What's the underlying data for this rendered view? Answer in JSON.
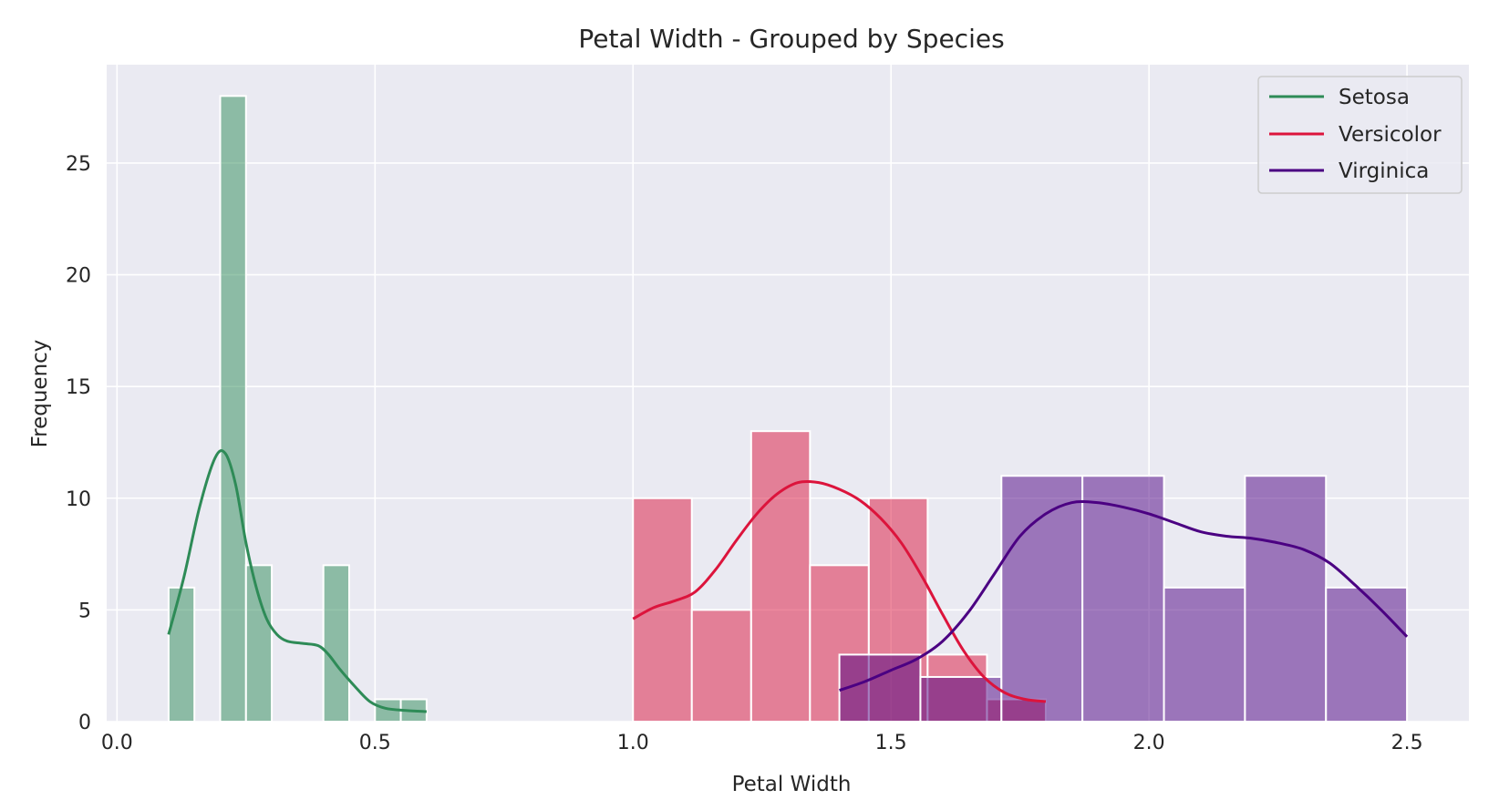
{
  "chart_data": {
    "type": "histogram",
    "title": "Petal Width - Grouped by Species",
    "xlabel": "Petal Width",
    "ylabel": "Frequency",
    "xlim": [
      -0.02,
      2.62
    ],
    "ylim": [
      0,
      29.4
    ],
    "xticks": [
      0.0,
      0.5,
      1.0,
      1.5,
      2.0,
      2.5
    ],
    "xtick_labels": [
      "0.0",
      "0.5",
      "1.0",
      "1.5",
      "2.0",
      "2.5"
    ],
    "yticks": [
      0,
      5,
      10,
      15,
      20,
      25
    ],
    "ytick_labels": [
      "0",
      "5",
      "10",
      "15",
      "20",
      "25"
    ],
    "grid": true,
    "legend_position": "top-right",
    "colors": {
      "background": "#eaeaf2",
      "grid": "#ffffff",
      "Setosa": "#2e8b57",
      "Versicolor": "#dc143c",
      "Virginica": "#4b0082"
    },
    "series": [
      {
        "name": "Setosa",
        "bins": [
          {
            "x0": 0.1,
            "x1": 0.15,
            "count": 6
          },
          {
            "x0": 0.15,
            "x1": 0.2,
            "count": 0
          },
          {
            "x0": 0.2,
            "x1": 0.25,
            "count": 28
          },
          {
            "x0": 0.25,
            "x1": 0.3,
            "count": 7
          },
          {
            "x0": 0.3,
            "x1": 0.35,
            "count": 0
          },
          {
            "x0": 0.35,
            "x1": 0.4,
            "count": 0
          },
          {
            "x0": 0.4,
            "x1": 0.45,
            "count": 7
          },
          {
            "x0": 0.45,
            "x1": 0.5,
            "count": 0
          },
          {
            "x0": 0.5,
            "x1": 0.55,
            "count": 1
          },
          {
            "x0": 0.55,
            "x1": 0.6,
            "count": 1
          }
        ],
        "kde": [
          [
            0.1,
            3.9
          ],
          [
            0.13,
            6.5
          ],
          [
            0.16,
            9.6
          ],
          [
            0.19,
            11.8
          ],
          [
            0.21,
            12.0
          ],
          [
            0.23,
            10.6
          ],
          [
            0.25,
            8.0
          ],
          [
            0.27,
            6.0
          ],
          [
            0.29,
            4.6
          ],
          [
            0.31,
            3.9
          ],
          [
            0.33,
            3.6
          ],
          [
            0.36,
            3.5
          ],
          [
            0.39,
            3.4
          ],
          [
            0.41,
            3.0
          ],
          [
            0.43,
            2.4
          ],
          [
            0.46,
            1.6
          ],
          [
            0.49,
            0.9
          ],
          [
            0.52,
            0.6
          ],
          [
            0.56,
            0.5
          ],
          [
            0.6,
            0.45
          ]
        ]
      },
      {
        "name": "Versicolor",
        "bins": [
          {
            "x0": 1.0,
            "x1": 1.114,
            "count": 10
          },
          {
            "x0": 1.114,
            "x1": 1.229,
            "count": 5
          },
          {
            "x0": 1.229,
            "x1": 1.343,
            "count": 13
          },
          {
            "x0": 1.343,
            "x1": 1.457,
            "count": 7
          },
          {
            "x0": 1.457,
            "x1": 1.571,
            "count": 10
          },
          {
            "x0": 1.571,
            "x1": 1.686,
            "count": 3
          },
          {
            "x0": 1.686,
            "x1": 1.8,
            "count": 1
          }
        ],
        "kde": [
          [
            1.0,
            4.6
          ],
          [
            1.04,
            5.1
          ],
          [
            1.08,
            5.4
          ],
          [
            1.12,
            5.8
          ],
          [
            1.16,
            6.8
          ],
          [
            1.2,
            8.1
          ],
          [
            1.24,
            9.3
          ],
          [
            1.28,
            10.2
          ],
          [
            1.32,
            10.7
          ],
          [
            1.36,
            10.7
          ],
          [
            1.4,
            10.4
          ],
          [
            1.44,
            9.9
          ],
          [
            1.48,
            9.1
          ],
          [
            1.52,
            8.0
          ],
          [
            1.56,
            6.5
          ],
          [
            1.6,
            4.8
          ],
          [
            1.64,
            3.2
          ],
          [
            1.68,
            2.0
          ],
          [
            1.72,
            1.3
          ],
          [
            1.76,
            1.0
          ],
          [
            1.8,
            0.9
          ]
        ]
      },
      {
        "name": "Virginica",
        "bins": [
          {
            "x0": 1.4,
            "x1": 1.557,
            "count": 3
          },
          {
            "x0": 1.557,
            "x1": 1.714,
            "count": 2
          },
          {
            "x0": 1.714,
            "x1": 1.871,
            "count": 11
          },
          {
            "x0": 1.871,
            "x1": 2.029,
            "count": 11
          },
          {
            "x0": 2.029,
            "x1": 2.186,
            "count": 6
          },
          {
            "x0": 2.186,
            "x1": 2.343,
            "count": 11
          },
          {
            "x0": 2.343,
            "x1": 2.5,
            "count": 6
          }
        ],
        "kde": [
          [
            1.4,
            1.4
          ],
          [
            1.45,
            1.8
          ],
          [
            1.5,
            2.3
          ],
          [
            1.55,
            2.8
          ],
          [
            1.6,
            3.6
          ],
          [
            1.65,
            4.9
          ],
          [
            1.7,
            6.6
          ],
          [
            1.75,
            8.3
          ],
          [
            1.8,
            9.3
          ],
          [
            1.85,
            9.8
          ],
          [
            1.9,
            9.8
          ],
          [
            1.95,
            9.6
          ],
          [
            2.0,
            9.3
          ],
          [
            2.05,
            8.9
          ],
          [
            2.1,
            8.5
          ],
          [
            2.15,
            8.3
          ],
          [
            2.2,
            8.2
          ],
          [
            2.25,
            8.0
          ],
          [
            2.3,
            7.7
          ],
          [
            2.35,
            7.1
          ],
          [
            2.4,
            6.1
          ],
          [
            2.45,
            5.0
          ],
          [
            2.5,
            3.8
          ]
        ]
      }
    ]
  }
}
